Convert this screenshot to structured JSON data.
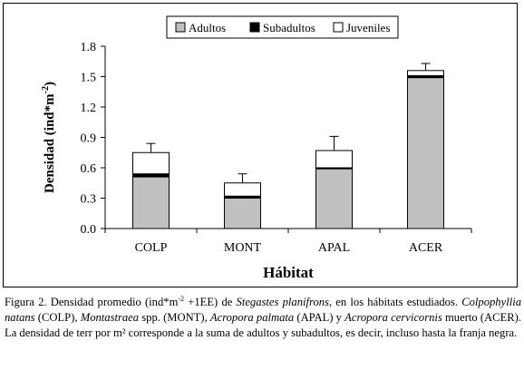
{
  "chart_data": {
    "type": "bar",
    "stacked": true,
    "categories": [
      "COLP",
      "MONT",
      "APAL",
      "ACER"
    ],
    "series": [
      {
        "name": "Adultos",
        "color": "#c0c0c0",
        "values": [
          0.51,
          0.3,
          0.59,
          1.49
        ]
      },
      {
        "name": "Subadultos",
        "color": "#000000",
        "values": [
          0.03,
          0.02,
          0.01,
          0.02
        ]
      },
      {
        "name": "Juveniles",
        "color": "#ffffff",
        "values": [
          0.21,
          0.13,
          0.17,
          0.05
        ]
      }
    ],
    "error_bars_upper": [
      0.84,
      0.54,
      0.91,
      1.63
    ],
    "xlabel": "Hábitat",
    "ylabel": "Densidad (ind*m",
    "ylabel_sup": "-2",
    "ylabel_close": ")",
    "ylim": [
      0,
      1.8
    ],
    "yticks": [
      0.0,
      0.3,
      0.6,
      0.9,
      1.2,
      1.5,
      1.8
    ],
    "ytick_labels": [
      "0.0",
      "0.3",
      "0.6",
      "0.9",
      "1.2",
      "1.5",
      "1.8"
    ],
    "legend_position": "top"
  },
  "caption": {
    "p1": "Figura 2. Densidad promedio (ind*m",
    "p1_sup": "-2",
    "p2": " +1EE) de ",
    "p3_italic": "Stegastes planifrons",
    "p4": ", en los hábitats estudiados. ",
    "p5_italic": "Colpophyllia natans",
    "p6": " (COLP), ",
    "p7_italic": "Montastraea",
    "p8": " spp. (MONT), ",
    "p9_italic": "Acropora palmata",
    "p10": " (APAL) y ",
    "p11_italic": "Acropora cervicornis",
    "p12": " muerto (ACER). La densidad de terr por m² corresponde a la suma de adultos y subadultos, es decir, incluso hasta la franja negra."
  }
}
